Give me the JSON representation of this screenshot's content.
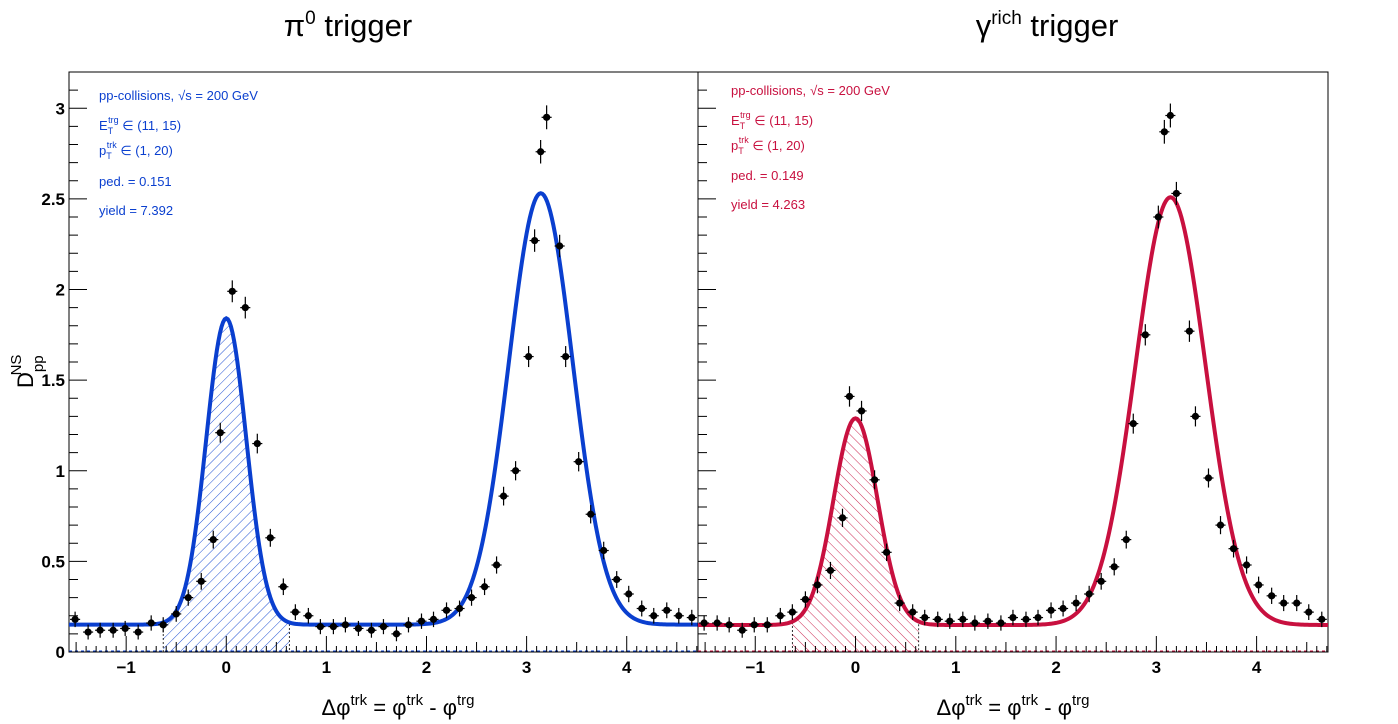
{
  "colors": {
    "left_fit": "#0a3fcf",
    "right_fit": "#c8103f",
    "points": "#000000"
  },
  "chart_data": [
    {
      "type": "scatter",
      "title_base": "π",
      "title_sup": "0",
      "title_rest": " trigger",
      "ylabel_base": "D",
      "ylabel_sup": "NS",
      "ylabel_sub": "pp",
      "xlabel_a": "Δφ",
      "xlabel_a_sup": "trk",
      "xlabel_b": " = φ",
      "xlabel_b_sup": "trk",
      "xlabel_c": " - φ",
      "xlabel_c_sup": "trg",
      "xlim": [
        -1.571,
        4.712
      ],
      "ylim": [
        0,
        3.2
      ],
      "x_ticks": [
        "−1",
        "0",
        "1",
        "2",
        "3",
        "4"
      ],
      "y_ticks": [
        "0",
        "0.5",
        "1",
        "1.5",
        "2",
        "2.5",
        "3"
      ],
      "annotations": {
        "system": "pp-collisions,",
        "sqrt": "√s = 200 GeV",
        "et_base": "E",
        "et_sub": "T",
        "et_sup": "trg",
        "et_range": " ∈ (11, 15)",
        "pt_base": "p",
        "pt_sub": "T",
        "pt_sup": "trk",
        "pt_range": " ∈ (1, 20)",
        "ped": "ped. = 0.151",
        "yield": "yield = 7.392"
      },
      "fit": {
        "pedestal": 0.151,
        "ns_amplitude": 1.69,
        "ns_sigma": 0.2,
        "as_amplitude": 2.38,
        "as_sigma": 0.32,
        "shaded_ns_range": [
          -0.63,
          0.63
        ]
      },
      "points": {
        "x": [
          -1.51,
          -1.38,
          -1.26,
          -1.13,
          -1.01,
          -0.88,
          -0.75,
          -0.63,
          -0.5,
          -0.38,
          -0.25,
          -0.13,
          -0.06,
          0.06,
          0.19,
          0.31,
          0.44,
          0.57,
          0.69,
          0.82,
          0.94,
          1.07,
          1.19,
          1.32,
          1.45,
          1.57,
          1.7,
          1.82,
          1.95,
          2.07,
          2.2,
          2.33,
          2.45,
          2.58,
          2.7,
          2.77,
          2.89,
          3.02,
          3.08,
          3.14,
          3.2,
          3.33,
          3.39,
          3.52,
          3.64,
          3.77,
          3.9,
          4.02,
          4.15,
          4.27,
          4.4,
          4.52,
          4.65
        ],
        "y": [
          0.18,
          0.11,
          0.12,
          0.12,
          0.13,
          0.11,
          0.16,
          0.15,
          0.21,
          0.3,
          0.39,
          0.62,
          1.21,
          1.99,
          1.9,
          1.15,
          0.63,
          0.36,
          0.22,
          0.2,
          0.14,
          0.14,
          0.15,
          0.13,
          0.12,
          0.14,
          0.1,
          0.15,
          0.17,
          0.18,
          0.23,
          0.24,
          0.3,
          0.36,
          0.48,
          0.86,
          1.0,
          1.63,
          2.27,
          2.76,
          2.95,
          2.24,
          1.63,
          1.05,
          0.76,
          0.56,
          0.4,
          0.32,
          0.24,
          0.2,
          0.23,
          0.2,
          0.19
        ]
      }
    },
    {
      "type": "scatter",
      "title_base": "γ",
      "title_sup": "rich",
      "title_rest": " trigger",
      "xlabel_a": "Δφ",
      "xlabel_a_sup": "trk",
      "xlabel_b": " = φ",
      "xlabel_b_sup": "trk",
      "xlabel_c": " - φ",
      "xlabel_c_sup": "trg",
      "xlim": [
        -1.571,
        4.712
      ],
      "ylim": [
        0,
        3.2
      ],
      "x_ticks": [
        "−1",
        "0",
        "1",
        "2",
        "3",
        "4"
      ],
      "annotations": {
        "system": "pp-collisions,",
        "sqrt": "√s = 200 GeV",
        "et_base": "E",
        "et_sub": "T",
        "et_sup": "trg",
        "et_range": " ∈ (11, 15)",
        "pt_base": "p",
        "pt_sub": "T",
        "pt_sup": "trk",
        "pt_range": " ∈ (1, 20)",
        "ped": "ped. = 0.149",
        "yield": "yield = 4.263"
      },
      "fit": {
        "pedestal": 0.149,
        "ns_amplitude": 1.14,
        "ns_sigma": 0.22,
        "as_amplitude": 2.36,
        "as_sigma": 0.35,
        "shaded_ns_range": [
          -0.63,
          0.63
        ]
      },
      "points": {
        "x": [
          -1.51,
          -1.38,
          -1.26,
          -1.13,
          -1.01,
          -0.88,
          -0.75,
          -0.63,
          -0.5,
          -0.38,
          -0.25,
          -0.13,
          -0.06,
          0.06,
          0.19,
          0.31,
          0.44,
          0.57,
          0.69,
          0.82,
          0.94,
          1.07,
          1.19,
          1.32,
          1.45,
          1.57,
          1.7,
          1.82,
          1.95,
          2.07,
          2.2,
          2.33,
          2.45,
          2.58,
          2.7,
          2.77,
          2.89,
          3.02,
          3.08,
          3.14,
          3.2,
          3.33,
          3.39,
          3.52,
          3.64,
          3.77,
          3.9,
          4.02,
          4.15,
          4.27,
          4.4,
          4.52,
          4.65
        ],
        "y": [
          0.16,
          0.16,
          0.15,
          0.12,
          0.15,
          0.15,
          0.2,
          0.22,
          0.29,
          0.37,
          0.45,
          0.74,
          1.41,
          1.33,
          0.95,
          0.55,
          0.27,
          0.22,
          0.19,
          0.18,
          0.17,
          0.18,
          0.16,
          0.17,
          0.16,
          0.19,
          0.18,
          0.19,
          0.23,
          0.24,
          0.27,
          0.32,
          0.39,
          0.47,
          0.62,
          1.26,
          1.75,
          2.4,
          2.87,
          2.96,
          2.53,
          1.77,
          1.3,
          0.96,
          0.7,
          0.57,
          0.48,
          0.37,
          0.31,
          0.27,
          0.27,
          0.22,
          0.18
        ]
      }
    }
  ]
}
